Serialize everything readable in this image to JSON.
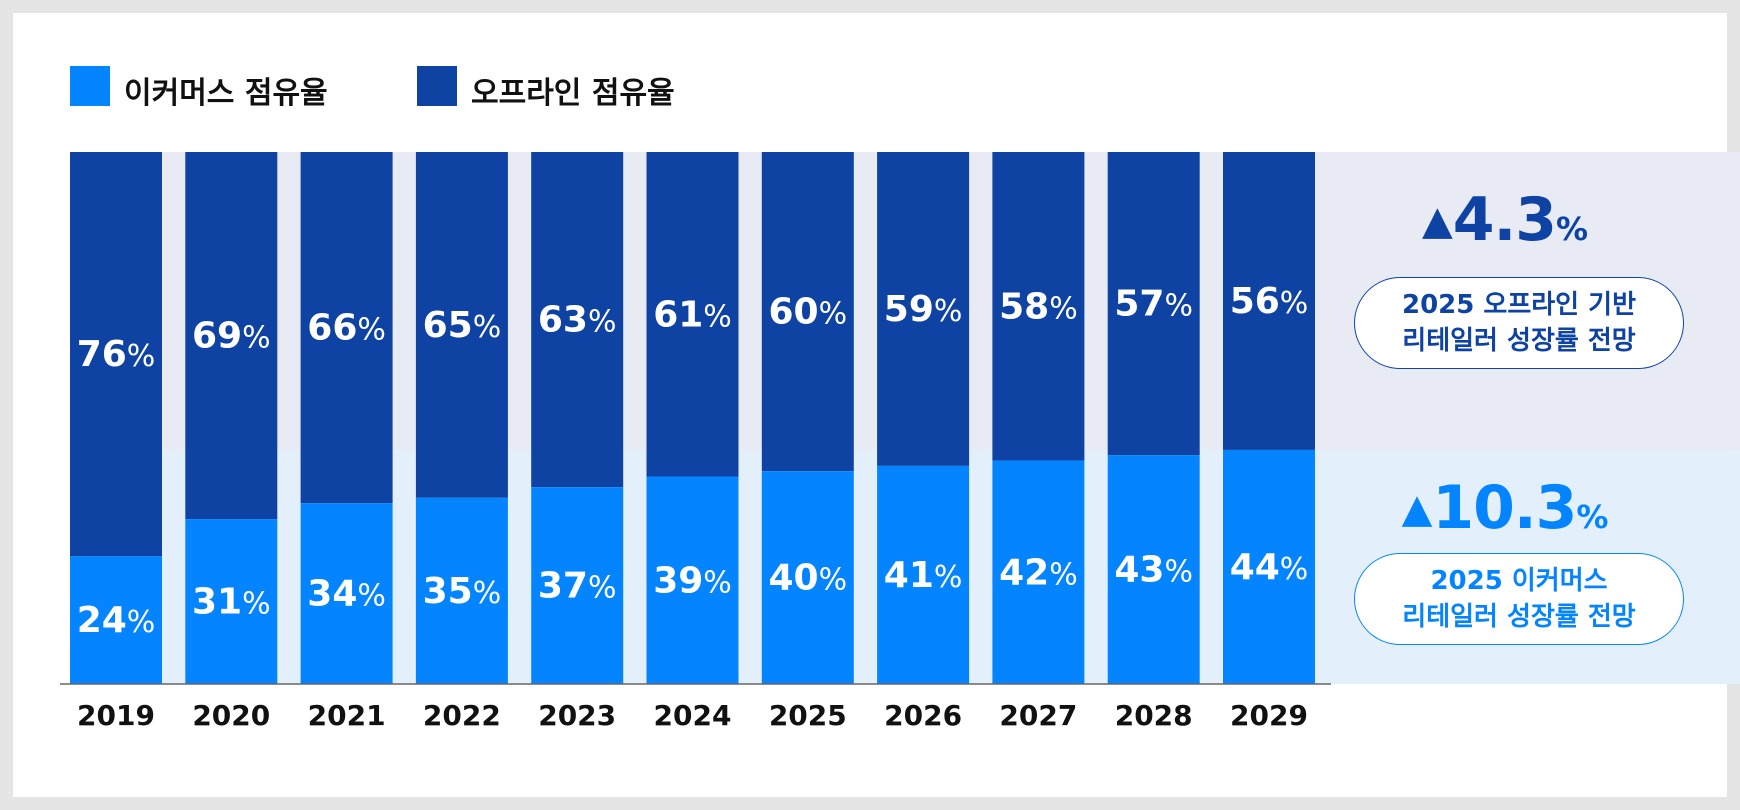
{
  "legend": {
    "ecommerce": "이커머스 점유율",
    "offline": "오프라인 점유율"
  },
  "colors": {
    "ecommerce": "#0485FF",
    "offline": "#0E43A4",
    "panel_top": "#E8EBF4",
    "panel_bottom": "#E3F0FC",
    "axis": "#666666"
  },
  "chart_data": {
    "type": "bar",
    "stacked": true,
    "percent_stacked": true,
    "categories": [
      "2019",
      "2020",
      "2021",
      "2022",
      "2023",
      "2024",
      "2025",
      "2026",
      "2027",
      "2028",
      "2029"
    ],
    "series": [
      {
        "name": "이커머스 점유율",
        "values": [
          24,
          31,
          34,
          35,
          37,
          39,
          40,
          41,
          42,
          43,
          44
        ]
      },
      {
        "name": "오프라인 점유율",
        "values": [
          76,
          69,
          66,
          65,
          63,
          61,
          60,
          59,
          58,
          57,
          56
        ]
      }
    ],
    "value_suffix": "%",
    "ylim": [
      0,
      100
    ],
    "grid": false,
    "legend_position": "top-left"
  },
  "callouts": {
    "offline": {
      "arrow": "▲",
      "value": "4.3",
      "unit": "%",
      "line1": "2025 오프라인 기반",
      "line2": "리테일러 성장률 전망"
    },
    "ecommerce": {
      "arrow": "▲",
      "value": "10.3",
      "unit": "%",
      "line1": "2025 이커머스",
      "line2": "리테일러 성장률 전망"
    }
  }
}
